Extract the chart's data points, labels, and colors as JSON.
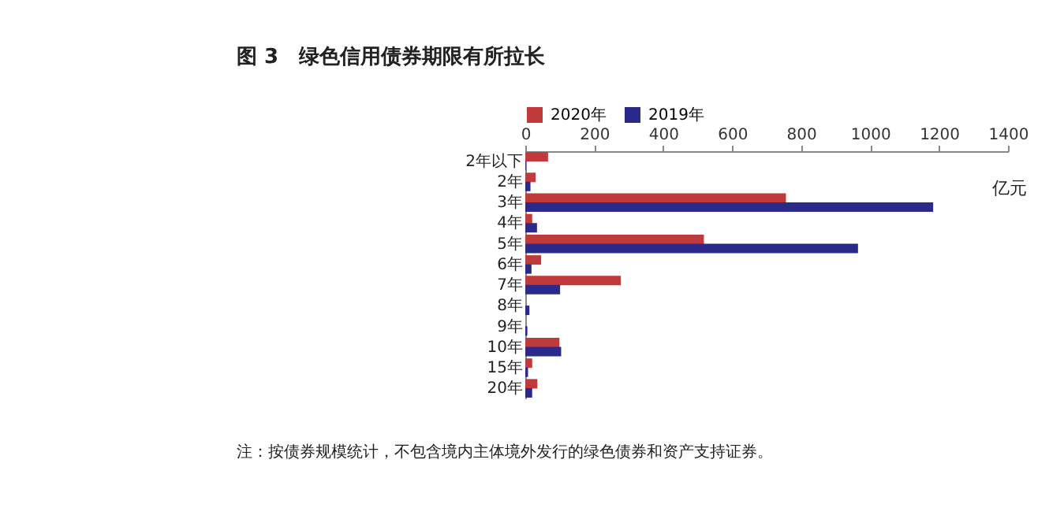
{
  "chart_data": {
    "type": "bar",
    "orientation": "horizontal",
    "title": "图 3　绿色信用债券期限有所拉长",
    "xlabel": "亿元",
    "categories": [
      "2年以下",
      "2年",
      "3年",
      "4年",
      "5年",
      "6年",
      "7年",
      "8年",
      "9年",
      "10年",
      "15年",
      "20年"
    ],
    "series": [
      {
        "name": "2020年",
        "color": "#c0393b",
        "values": [
          66,
          30,
          756,
          20,
          518,
          46,
          277,
          0,
          0,
          99,
          20,
          35
        ]
      },
      {
        "name": "2019年",
        "color": "#2b2a8a",
        "values": [
          2,
          15,
          1183,
          34,
          965,
          18,
          101,
          12,
          6,
          104,
          8,
          20
        ]
      }
    ],
    "xlim": [
      0,
      1400
    ],
    "xticks": [
      0,
      200,
      400,
      600,
      800,
      1000,
      1200,
      1400
    ],
    "grid": false,
    "legend": "top",
    "annotations": [
      "注：按债券规模统计，不包含境内主体境外发行的绿色债券和资产支持证券。"
    ]
  }
}
